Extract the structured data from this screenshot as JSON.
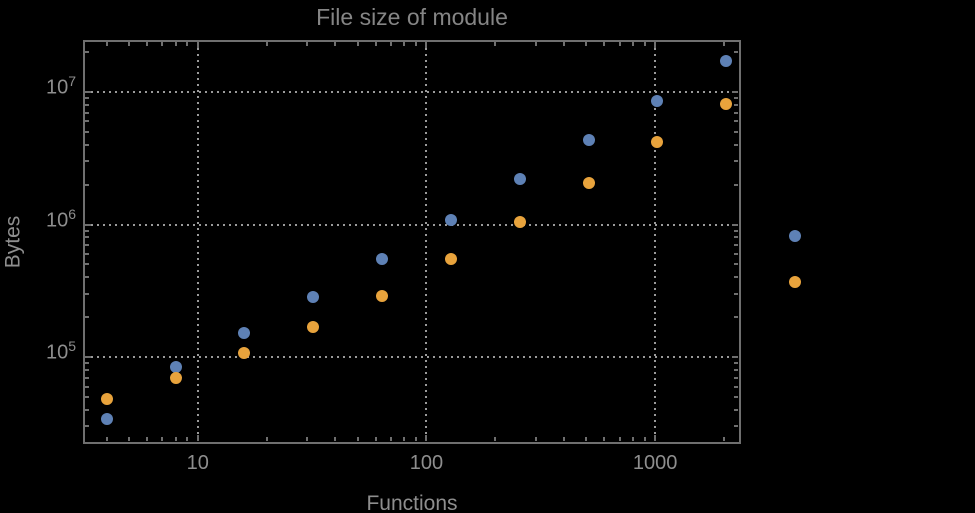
{
  "title": "File size of module",
  "axes": {
    "x_label": "Functions",
    "y_label": "Bytes",
    "x_ticks": [
      {
        "value": 10,
        "label": "10"
      },
      {
        "value": 100,
        "label": "100"
      },
      {
        "value": 1000,
        "label": "1000"
      }
    ],
    "y_ticks": [
      {
        "value": 100000,
        "base": "10",
        "exp": "5"
      },
      {
        "value": 1000000,
        "base": "10",
        "exp": "6"
      },
      {
        "value": 10000000,
        "base": "10",
        "exp": "7"
      }
    ]
  },
  "chart_data": {
    "type": "scatter",
    "title": "File size of module",
    "xlabel": "Functions",
    "ylabel": "Bytes",
    "x_scale": "log",
    "y_scale": "log",
    "xlim": [
      3.15,
      2350
    ],
    "ylim": [
      22500,
      24700000
    ],
    "grid": {
      "style": "dotted",
      "x_values": [
        10,
        100,
        1000
      ],
      "y_values": [
        100000,
        1000000,
        10000000
      ]
    },
    "legend": null,
    "plot_range_clipping": false,
    "note": "last x pair (4096) is drawn outside the right frame edge",
    "x": [
      4,
      8,
      16,
      32,
      64,
      128,
      256,
      512,
      1024,
      2048,
      4096
    ],
    "series": [
      {
        "name": "blue",
        "color": "#5E81B5",
        "values": [
          34000,
          84000,
          152000,
          285000,
          550000,
          1090000,
          2220000,
          4380000,
          8600000,
          17100000,
          826000
        ]
      },
      {
        "name": "orange",
        "color": "#E8A33C",
        "values": [
          48000,
          69000,
          107000,
          168000,
          290000,
          550000,
          1050000,
          2070000,
          4200000,
          8100000,
          371000
        ]
      }
    ]
  },
  "colors": {
    "background": "#000000",
    "frame": "#6f6f6f",
    "grid_dots": "#9a9a9a",
    "label_text": "#8e8e8e",
    "title_text": "#858585",
    "series_blue": "#5E81B5",
    "series_orange": "#E8A33C"
  }
}
